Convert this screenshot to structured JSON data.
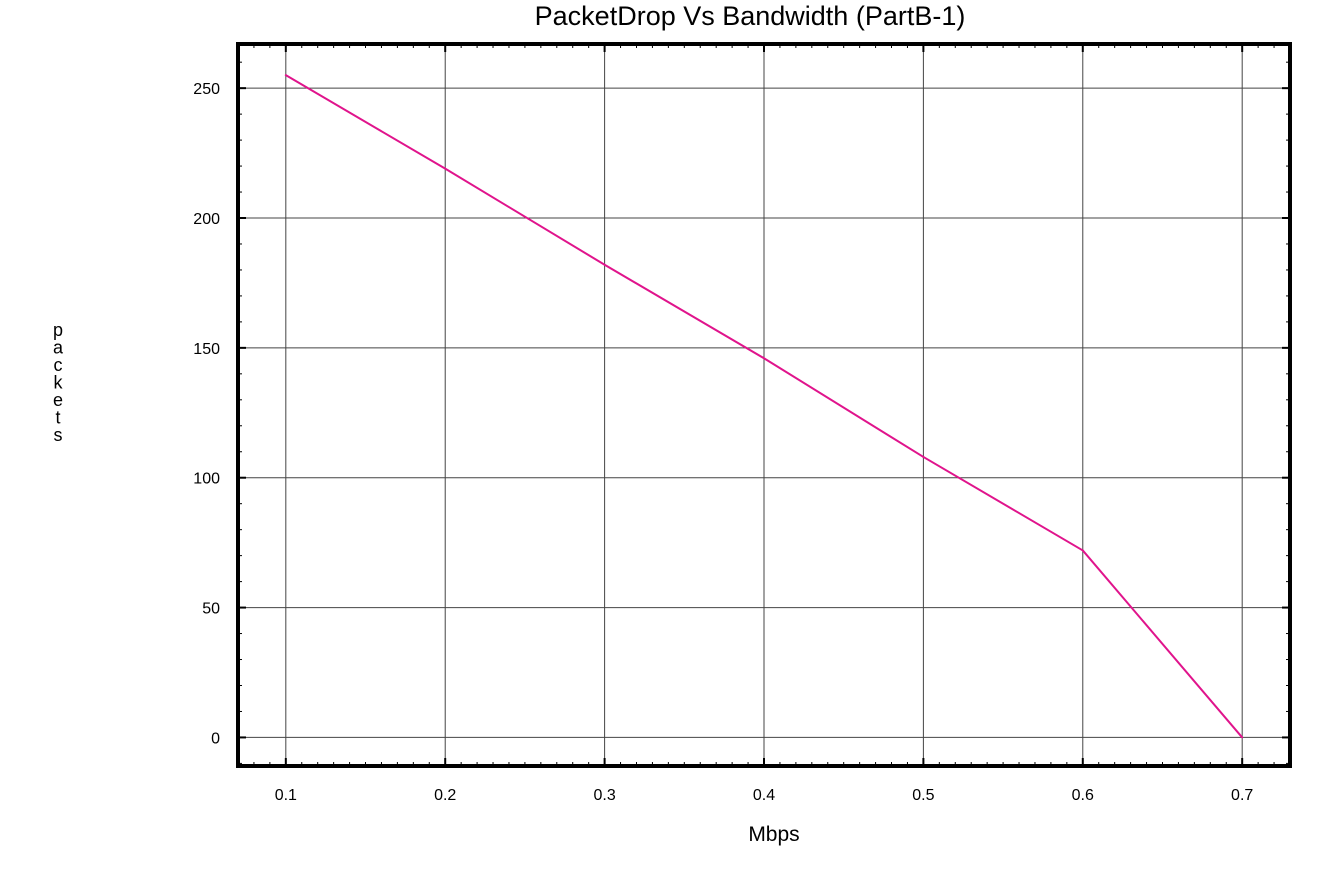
{
  "chart_data": {
    "type": "line",
    "title": "PacketDrop Vs Bandwidth (PartB-1)",
    "xlabel": "Mbps",
    "ylabel": "packets",
    "x": [
      0.1,
      0.2,
      0.3,
      0.4,
      0.5,
      0.6,
      0.7
    ],
    "series": [
      {
        "values": [
          255,
          219,
          182,
          146,
          108,
          72,
          0
        ],
        "color": "#e0148c"
      }
    ],
    "xticks": [
      "0.1",
      "0.2",
      "0.3",
      "0.4",
      "0.5",
      "0.6",
      "0.7"
    ],
    "yticks": [
      "0",
      "50",
      "100",
      "150",
      "200",
      "250"
    ],
    "xlim": [
      0.07,
      0.73
    ],
    "ylim": [
      -11,
      267
    ],
    "grid": true
  }
}
